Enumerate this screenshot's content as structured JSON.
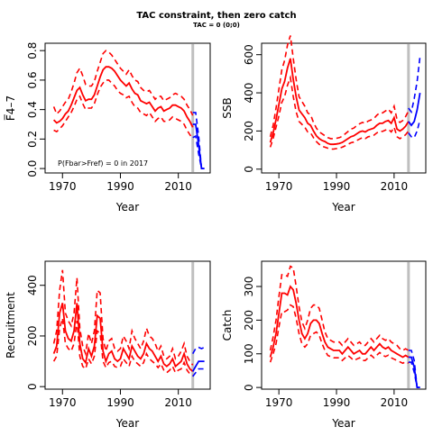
{
  "title": "TAC constraint, then zero catch",
  "subtitle": "TAC = 0 (0;0)",
  "colors": {
    "historic": "#ff0000",
    "projection": "#0000ff",
    "marker": "#bfbfbf",
    "axis": "#000000"
  },
  "chart_data": [
    {
      "id": "fbar",
      "type": "line",
      "ylabel": "F̅4–7",
      "xlabel": "Year",
      "xlim": [
        1964,
        2021
      ],
      "ylim": [
        -0.03,
        0.85
      ],
      "xticks": [
        {
          "v": 1970,
          "label": "1970"
        },
        {
          "v": 1990,
          "label": "1990"
        },
        {
          "v": 2010,
          "label": "2010"
        }
      ],
      "yticks": [
        {
          "v": 0,
          "label": "0.0"
        },
        {
          "v": 0.2,
          "label": "0.2"
        },
        {
          "v": 0.4,
          "label": "0.4"
        },
        {
          "v": 0.6,
          "label": "0.6"
        },
        {
          "v": 0.8,
          "label": "0.8"
        }
      ],
      "annotation": "P(Fbar>Fref) = 0  in 2017",
      "marker_year": 2015,
      "historic": {
        "years": [
          1967,
          1968,
          1969,
          1970,
          1971,
          1972,
          1973,
          1974,
          1975,
          1976,
          1977,
          1978,
          1979,
          1980,
          1981,
          1982,
          1983,
          1984,
          1985,
          1986,
          1987,
          1988,
          1989,
          1990,
          1991,
          1992,
          1993,
          1994,
          1995,
          1996,
          1997,
          1998,
          1999,
          2000,
          2001,
          2002,
          2003,
          2004,
          2005,
          2006,
          2007,
          2008,
          2009,
          2010,
          2011,
          2012,
          2013,
          2014,
          2015
        ],
        "median": [
          0.33,
          0.31,
          0.32,
          0.34,
          0.37,
          0.39,
          0.43,
          0.48,
          0.53,
          0.55,
          0.5,
          0.46,
          0.47,
          0.47,
          0.5,
          0.56,
          0.62,
          0.67,
          0.69,
          0.69,
          0.68,
          0.66,
          0.63,
          0.6,
          0.58,
          0.56,
          0.58,
          0.54,
          0.51,
          0.5,
          0.46,
          0.45,
          0.44,
          0.45,
          0.42,
          0.39,
          0.41,
          0.42,
          0.39,
          0.4,
          0.41,
          0.43,
          0.43,
          0.42,
          0.41,
          0.39,
          0.35,
          0.32,
          0.28
        ],
        "lower": [
          0.26,
          0.25,
          0.27,
          0.29,
          0.32,
          0.35,
          0.38,
          0.42,
          0.47,
          0.49,
          0.44,
          0.4,
          0.41,
          0.41,
          0.44,
          0.5,
          0.55,
          0.58,
          0.6,
          0.6,
          0.58,
          0.56,
          0.53,
          0.51,
          0.5,
          0.48,
          0.49,
          0.45,
          0.42,
          0.41,
          0.38,
          0.37,
          0.36,
          0.38,
          0.35,
          0.32,
          0.34,
          0.35,
          0.32,
          0.32,
          0.33,
          0.35,
          0.34,
          0.33,
          0.32,
          0.3,
          0.26,
          0.23,
          0.2
        ],
        "upper": [
          0.42,
          0.37,
          0.39,
          0.42,
          0.45,
          0.47,
          0.52,
          0.58,
          0.65,
          0.68,
          0.63,
          0.57,
          0.56,
          0.56,
          0.59,
          0.66,
          0.72,
          0.78,
          0.8,
          0.79,
          0.77,
          0.74,
          0.71,
          0.68,
          0.66,
          0.64,
          0.67,
          0.63,
          0.6,
          0.59,
          0.55,
          0.53,
          0.52,
          0.53,
          0.5,
          0.47,
          0.49,
          0.49,
          0.46,
          0.47,
          0.48,
          0.5,
          0.51,
          0.5,
          0.49,
          0.47,
          0.43,
          0.4,
          0.36
        ]
      },
      "projection": {
        "years": [
          2015,
          2016,
          2017,
          2018,
          2019
        ],
        "median": [
          0.3,
          0.3,
          0.16,
          0,
          0
        ],
        "lower": [
          0.21,
          0.22,
          0.1,
          0,
          0
        ],
        "upper": [
          0.38,
          0.38,
          0.22,
          0,
          0
        ]
      }
    },
    {
      "id": "ssb",
      "type": "line",
      "ylabel": "SSB",
      "xlabel": "Year",
      "xlim": [
        1964,
        2021
      ],
      "ylim": [
        -20,
        660
      ],
      "xticks": [
        {
          "v": 1970,
          "label": "1970"
        },
        {
          "v": 1990,
          "label": "1990"
        },
        {
          "v": 2010,
          "label": "2010"
        }
      ],
      "yticks": [
        {
          "v": 0,
          "label": "0"
        },
        {
          "v": 200,
          "label": "200"
        },
        {
          "v": 400,
          "label": "400"
        },
        {
          "v": 600,
          "label": "600"
        }
      ],
      "marker_year": 2015,
      "historic": {
        "years": [
          1967,
          1968,
          1969,
          1970,
          1971,
          1972,
          1973,
          1974,
          1975,
          1976,
          1977,
          1978,
          1979,
          1980,
          1981,
          1982,
          1983,
          1984,
          1985,
          1986,
          1987,
          1988,
          1989,
          1990,
          1991,
          1992,
          1993,
          1994,
          1995,
          1996,
          1997,
          1998,
          1999,
          2000,
          2001,
          2002,
          2003,
          2004,
          2005,
          2006,
          2007,
          2008,
          2009,
          2010,
          2011,
          2012,
          2013,
          2014,
          2015
        ],
        "median": [
          140,
          190,
          260,
          340,
          420,
          460,
          530,
          580,
          470,
          380,
          310,
          290,
          270,
          240,
          230,
          200,
          175,
          160,
          150,
          145,
          135,
          130,
          130,
          132,
          135,
          140,
          150,
          160,
          170,
          175,
          185,
          195,
          200,
          195,
          205,
          210,
          215,
          230,
          240,
          240,
          250,
          255,
          240,
          270,
          210,
          200,
          210,
          225,
          250
        ],
        "lower": [
          115,
          160,
          220,
          280,
          350,
          380,
          440,
          480,
          380,
          300,
          250,
          235,
          220,
          195,
          190,
          165,
          145,
          130,
          120,
          115,
          110,
          105,
          105,
          108,
          110,
          115,
          122,
          130,
          138,
          142,
          150,
          158,
          165,
          160,
          170,
          172,
          178,
          190,
          198,
          198,
          205,
          210,
          195,
          220,
          170,
          160,
          170,
          180,
          200
        ],
        "upper": [
          170,
          230,
          320,
          420,
          520,
          570,
          650,
          700,
          580,
          470,
          380,
          355,
          330,
          295,
          285,
          245,
          215,
          195,
          185,
          175,
          165,
          160,
          160,
          162,
          165,
          172,
          185,
          197,
          210,
          215,
          228,
          238,
          245,
          240,
          252,
          258,
          265,
          282,
          295,
          295,
          305,
          315,
          295,
          330,
          260,
          245,
          255,
          275,
          305
        ]
      },
      "projection": {
        "years": [
          2015,
          2016,
          2017,
          2018,
          2019
        ],
        "median": [
          250,
          230,
          250,
          310,
          400
        ],
        "lower": [
          190,
          170,
          165,
          200,
          260
        ],
        "upper": [
          320,
          300,
          370,
          460,
          590
        ]
      }
    },
    {
      "id": "rec",
      "type": "line",
      "ylabel": "Recruitment",
      "xlabel": "Year",
      "xlim": [
        1964,
        2021
      ],
      "ylim": [
        -10,
        495
      ],
      "xticks": [
        {
          "v": 1970,
          "label": "1970"
        },
        {
          "v": 1990,
          "label": "1990"
        },
        {
          "v": 2010,
          "label": "2010"
        }
      ],
      "yticks": [
        {
          "v": 0,
          "label": "0"
        },
        {
          "v": 200,
          "label": "200"
        },
        {
          "v": 400,
          "label": "400"
        }
      ],
      "marker_year": 2015,
      "historic": {
        "years": [
          1967,
          1968,
          1969,
          1970,
          1971,
          1972,
          1973,
          1974,
          1975,
          1976,
          1977,
          1978,
          1979,
          1980,
          1981,
          1982,
          1983,
          1984,
          1985,
          1986,
          1987,
          1988,
          1989,
          1990,
          1991,
          1992,
          1993,
          1994,
          1995,
          1996,
          1997,
          1998,
          1999,
          2000,
          2001,
          2002,
          2003,
          2004,
          2005,
          2006,
          2007,
          2008,
          2009,
          2010,
          2011,
          2012,
          2013,
          2014,
          2015
        ],
        "median": [
          130,
          160,
          290,
          330,
          220,
          190,
          180,
          220,
          330,
          170,
          110,
          95,
          150,
          120,
          160,
          280,
          270,
          140,
          100,
          130,
          140,
          110,
          100,
          110,
          150,
          130,
          110,
          160,
          140,
          120,
          110,
          130,
          170,
          150,
          140,
          120,
          100,
          120,
          90,
          80,
          90,
          110,
          80,
          90,
          100,
          130,
          90,
          70,
          60
        ],
        "lower": [
          100,
          120,
          230,
          270,
          170,
          150,
          140,
          170,
          260,
          120,
          80,
          70,
          110,
          90,
          120,
          220,
          210,
          100,
          75,
          95,
          100,
          80,
          75,
          80,
          110,
          95,
          80,
          120,
          100,
          90,
          80,
          95,
          130,
          110,
          100,
          90,
          75,
          90,
          65,
          55,
          65,
          80,
          55,
          65,
          70,
          95,
          65,
          50,
          45
        ],
        "upper": [
          170,
          220,
          380,
          460,
          290,
          260,
          240,
          290,
          430,
          230,
          160,
          130,
          210,
          170,
          220,
          380,
          370,
          190,
          140,
          180,
          190,
          150,
          140,
          150,
          200,
          180,
          150,
          220,
          190,
          170,
          150,
          180,
          230,
          200,
          190,
          170,
          140,
          160,
          120,
          110,
          120,
          150,
          110,
          120,
          140,
          170,
          120,
          100,
          85
        ]
      },
      "projection": {
        "years": [
          2015,
          2016,
          2017,
          2018,
          2019
        ],
        "median": [
          60,
          80,
          100,
          100,
          100
        ],
        "lower": [
          40,
          55,
          70,
          70,
          70
        ],
        "upper": [
          130,
          150,
          155,
          150,
          155
        ]
      }
    },
    {
      "id": "catch",
      "type": "line",
      "ylabel": "Catch",
      "xlabel": "Year",
      "xlim": [
        1964,
        2021
      ],
      "ylim": [
        -5,
        375
      ],
      "xticks": [
        {
          "v": 1970,
          "label": "1970"
        },
        {
          "v": 1990,
          "label": "1990"
        },
        {
          "v": 2010,
          "label": "2010"
        }
      ],
      "yticks": [
        {
          "v": 0,
          "label": "0"
        },
        {
          "v": 100,
          "label": "100"
        },
        {
          "v": 200,
          "label": "200"
        },
        {
          "v": 300,
          "label": "300"
        }
      ],
      "marker_year": 2015,
      "historic": {
        "years": [
          1967,
          1968,
          1969,
          1970,
          1971,
          1972,
          1973,
          1974,
          1975,
          1976,
          1977,
          1978,
          1979,
          1980,
          1981,
          1982,
          1983,
          1984,
          1985,
          1986,
          1987,
          1988,
          1989,
          1990,
          1991,
          1992,
          1993,
          1994,
          1995,
          1996,
          1997,
          1998,
          1999,
          2000,
          2001,
          2002,
          2003,
          2004,
          2005,
          2006,
          2007,
          2008,
          2009,
          2010,
          2011,
          2012,
          2013,
          2014,
          2015
        ],
        "median": [
          90,
          120,
          160,
          220,
          280,
          280,
          275,
          300,
          290,
          250,
          200,
          160,
          145,
          160,
          190,
          200,
          200,
          190,
          160,
          135,
          120,
          115,
          110,
          110,
          110,
          100,
          110,
          120,
          110,
          100,
          105,
          110,
          100,
          100,
          110,
          120,
          110,
          120,
          130,
          120,
          115,
          120,
          110,
          105,
          100,
          95,
          90,
          95,
          90
        ],
        "lower": [
          75,
          100,
          130,
          180,
          225,
          225,
          230,
          245,
          240,
          205,
          160,
          130,
          120,
          130,
          155,
          160,
          165,
          155,
          130,
          110,
          95,
          92,
          88,
          88,
          88,
          80,
          88,
          95,
          88,
          80,
          84,
          88,
          80,
          80,
          88,
          96,
          88,
          96,
          104,
          96,
          92,
          96,
          88,
          84,
          80,
          76,
          72,
          76,
          72
        ],
        "upper": [
          110,
          150,
          200,
          270,
          335,
          335,
          330,
          360,
          355,
          300,
          240,
          195,
          175,
          200,
          235,
          245,
          245,
          235,
          200,
          165,
          145,
          140,
          135,
          135,
          135,
          125,
          135,
          145,
          135,
          125,
          130,
          135,
          125,
          125,
          135,
          145,
          135,
          145,
          155,
          145,
          140,
          145,
          135,
          130,
          125,
          115,
          110,
          115,
          110
        ]
      },
      "projection": {
        "years": [
          2015,
          2016,
          2017,
          2018,
          2019
        ],
        "median": [
          90,
          90,
          60,
          0,
          0
        ],
        "lower": [
          75,
          75,
          45,
          0,
          0
        ],
        "upper": [
          110,
          110,
          80,
          0,
          0
        ]
      }
    }
  ]
}
